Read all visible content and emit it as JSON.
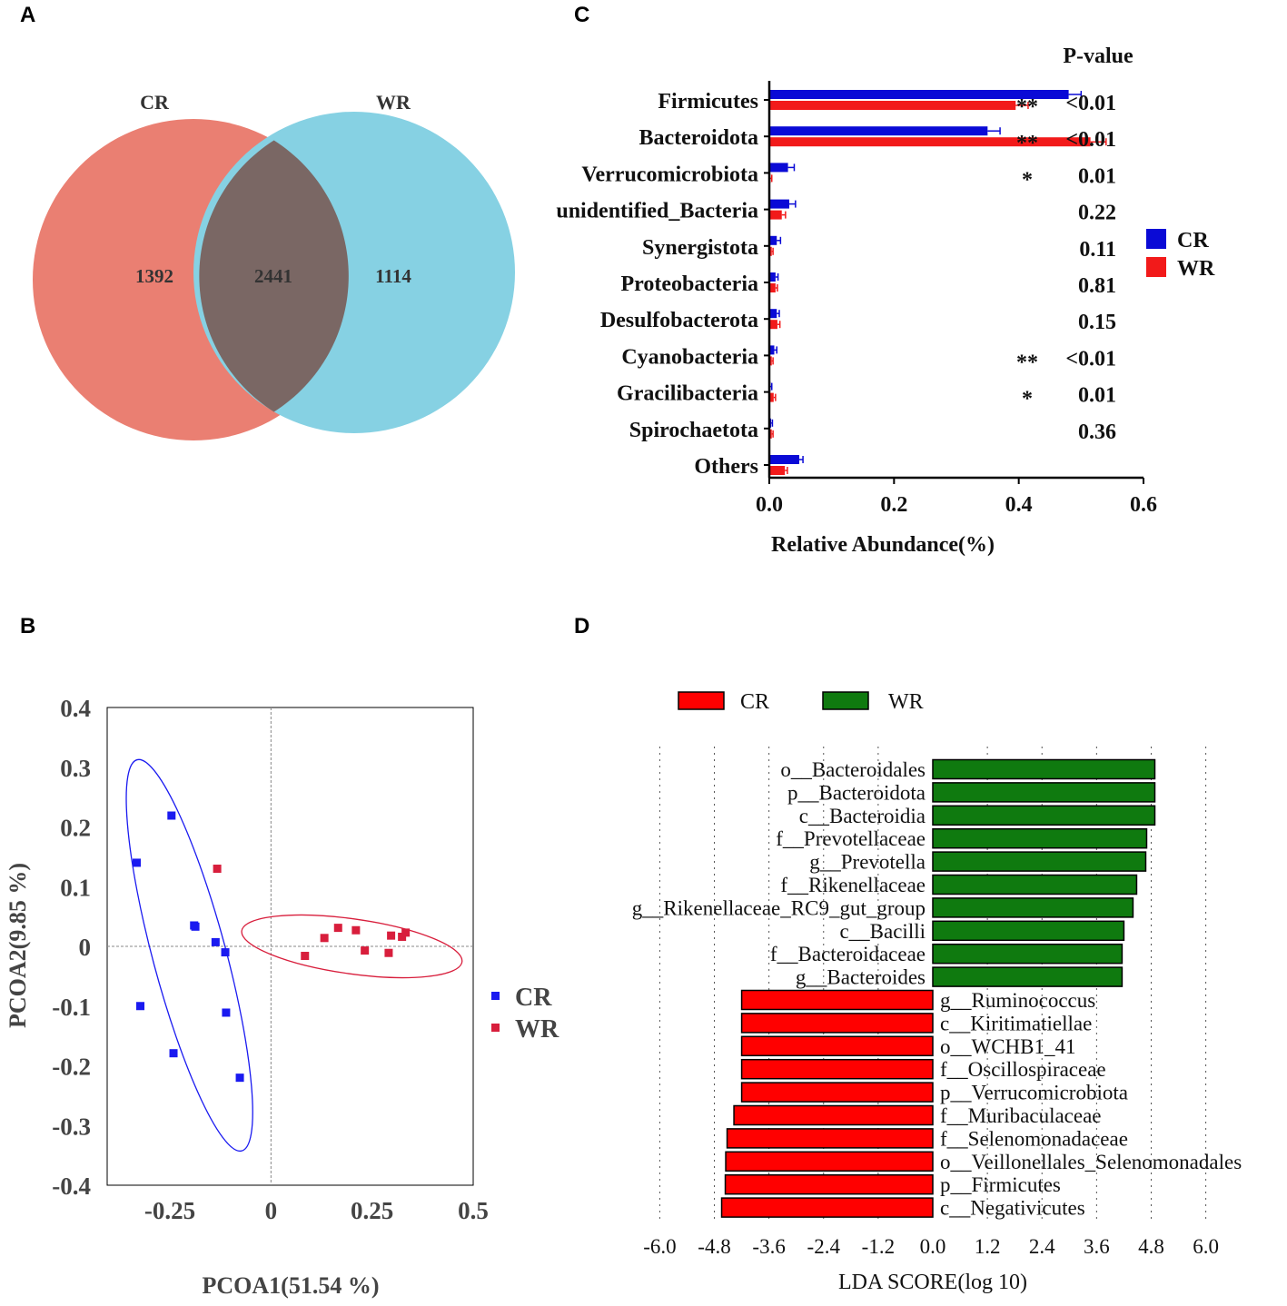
{
  "panel_labels": {
    "a": "A",
    "b": "B",
    "c": "C",
    "d": "D"
  },
  "colors": {
    "cr_venn": "#ea7f72",
    "wr_venn": "#86d1e3",
    "overlap": "#7a6764",
    "cr_bar": "#0a0ad6",
    "wr_bar": "#f21a1a",
    "cr_pcoa": "#1a1af0",
    "wr_pcoa": "#d81e3c",
    "lda_cr": "#ff0000",
    "lda_wr": "#0f7a0f"
  },
  "chart_data": [
    {
      "panel": "A",
      "type": "venn",
      "sets": [
        {
          "name": "CR",
          "unique": 1392
        },
        {
          "name": "WR",
          "unique": 1114
        }
      ],
      "intersection": 2441
    },
    {
      "panel": "B",
      "type": "scatter",
      "xlabel": "PCOA1(51.54 %)",
      "ylabel": "PCOA2(9.85 %)",
      "xlim": [
        -0.405,
        0.5
      ],
      "ylim": [
        -0.4,
        0.4
      ],
      "xticks": [
        "-0.25",
        "0",
        "0.25",
        "0.5"
      ],
      "xtick_values": [
        -0.25,
        0,
        0.25,
        0.5
      ],
      "yticks": [
        "0.4",
        "0.3",
        "0.2",
        "0.1",
        "0",
        "-0.1",
        "-0.2",
        "-0.3",
        "-0.4"
      ],
      "ytick_values": [
        0.4,
        0.3,
        0.2,
        0.1,
        0,
        -0.1,
        -0.2,
        -0.3,
        -0.4
      ],
      "legend": [
        "CR",
        "WR"
      ],
      "series": [
        {
          "name": "CR",
          "points": [
            [
              -0.246,
              0.219
            ],
            [
              -0.332,
              0.14
            ],
            [
              -0.19,
              0.035
            ],
            [
              -0.187,
              0.033
            ],
            [
              -0.137,
              0.007
            ],
            [
              -0.113,
              -0.01
            ],
            [
              -0.323,
              -0.1
            ],
            [
              -0.111,
              -0.111
            ],
            [
              -0.241,
              -0.179
            ],
            [
              -0.077,
              -0.22
            ]
          ]
        },
        {
          "name": "WR",
          "points": [
            [
              -0.133,
              0.13
            ],
            [
              0.084,
              -0.016
            ],
            [
              0.132,
              0.014
            ],
            [
              0.166,
              0.031
            ],
            [
              0.21,
              0.027
            ],
            [
              0.232,
              -0.007
            ],
            [
              0.291,
              -0.011
            ],
            [
              0.297,
              0.018
            ],
            [
              0.324,
              0.016
            ],
            [
              0.333,
              0.023
            ]
          ]
        }
      ],
      "ellipses": [
        {
          "group": "CR",
          "center": [
            -0.2015,
            -0.015
          ],
          "half_axes": [
            0.0905,
            0.339
          ],
          "rotation_deg": -15
        },
        {
          "group": "WR",
          "center": [
            0.2,
            0.0
          ],
          "half_axes": [
            0.275,
            0.046
          ],
          "rotation_deg": 8
        }
      ]
    },
    {
      "panel": "C",
      "type": "bar",
      "orientation": "horizontal",
      "categories": [
        "Firmicutes",
        "Bacteroidota",
        "Verrucomicrobiota",
        "unidentified_Bacteria",
        "Synergistota",
        "Proteobacteria",
        "Desulfobacterota",
        "Cyanobacteria",
        "Gracilibacteria",
        "Spirochaetota",
        "Others"
      ],
      "series": [
        {
          "name": "CR",
          "values": [
            0.48,
            0.35,
            0.03,
            0.032,
            0.012,
            0.01,
            0.012,
            0.008,
            0.002,
            0.003,
            0.048
          ],
          "errors": [
            0.02,
            0.02,
            0.01,
            0.01,
            0.006,
            0.004,
            0.004,
            0.004,
            0.002,
            0.002,
            0.006
          ]
        },
        {
          "name": "WR",
          "values": [
            0.395,
            0.515,
            0.002,
            0.02,
            0.004,
            0.01,
            0.013,
            0.004,
            0.007,
            0.004,
            0.025
          ],
          "errors": [
            0.02,
            0.025,
            0.002,
            0.006,
            0.002,
            0.003,
            0.004,
            0.002,
            0.003,
            0.002,
            0.004
          ]
        }
      ],
      "significance": [
        "**",
        "**",
        "*",
        "",
        "",
        "",
        "",
        "**",
        "*",
        "",
        ""
      ],
      "pvalues": [
        "<0.01",
        "<0.01",
        "0.01",
        "0.22",
        "0.11",
        "0.81",
        "0.15",
        "<0.01",
        "0.01",
        "0.36",
        ""
      ],
      "pvalue_header": "P-value",
      "xlabel": "Relative Abundance(%)",
      "xlim": [
        0,
        0.6
      ],
      "xticks": [
        "0.0",
        "0.2",
        "0.4",
        "0.6"
      ],
      "xtick_values": [
        0,
        0.2,
        0.4,
        0.6
      ],
      "legend": [
        "CR",
        "WR"
      ]
    },
    {
      "panel": "D",
      "type": "bar",
      "orientation": "horizontal",
      "categories": [
        "o__Bacteroidales",
        "p__Bacteroidota",
        "c__Bacteroidia",
        "f__Prevotellaceae",
        "g__Prevotella",
        "f__Rikenellaceae",
        "g__Rikenellaceae_RC9_gut_group",
        "c__Bacilli",
        "f__Bacteroidaceae",
        "g__Bacteroides",
        "g__Ruminococcus",
        "c__Kiritimatiellae",
        "o__WCHB1_41",
        "f__Oscillospiraceae",
        "p__Verrucomicrobiota",
        "f__Muribaculaceae",
        "f__Selenomonadaceae",
        "o__Veillonellales_Selenomonadales",
        "p__Firmicutes",
        "c__Negativicutes"
      ],
      "values": [
        4.88,
        4.88,
        4.88,
        4.7,
        4.68,
        4.48,
        4.4,
        4.2,
        4.16,
        4.16,
        -4.2,
        -4.2,
        -4.2,
        -4.2,
        -4.2,
        -4.37,
        -4.52,
        -4.55,
        -4.56,
        -4.64
      ],
      "groups": [
        "WR",
        "WR",
        "WR",
        "WR",
        "WR",
        "WR",
        "WR",
        "WR",
        "WR",
        "WR",
        "CR",
        "CR",
        "CR",
        "CR",
        "CR",
        "CR",
        "CR",
        "CR",
        "CR",
        "CR"
      ],
      "xlabel": "LDA SCORE(log 10)",
      "xlim": [
        -6.0,
        6.0
      ],
      "xticks": [
        "-6.0",
        "-4.8",
        "-3.6",
        "-2.4",
        "-1.2",
        "0.0",
        "1.2",
        "2.4",
        "3.6",
        "4.8",
        "6.0"
      ],
      "xtick_values": [
        -6.0,
        -4.8,
        -3.6,
        -2.4,
        -1.2,
        0.0,
        1.2,
        2.4,
        3.6,
        4.8,
        6.0
      ],
      "legend": [
        "CR",
        "WR"
      ]
    }
  ]
}
